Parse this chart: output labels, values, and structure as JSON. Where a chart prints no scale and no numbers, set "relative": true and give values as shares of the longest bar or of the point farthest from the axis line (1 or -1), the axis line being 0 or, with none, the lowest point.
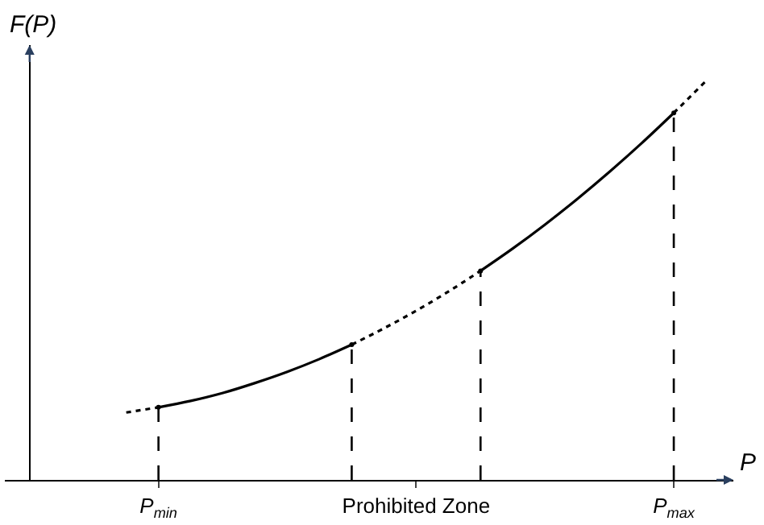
{
  "chart_data": {
    "type": "line",
    "relative": true,
    "xlabel": "P",
    "ylabel": "F(P)",
    "categories": [
      null,
      null,
      null,
      null,
      "P$_{min}$",
      null,
      null,
      null,
      null,
      null,
      null,
      null,
      "Prohibited Zone",
      null,
      null,
      null,
      null,
      null,
      null,
      null,
      "P$_{max}$",
      null
    ],
    "marker": "none",
    "series": [
      {
        "color": "#000000",
        "line_style": "dotted",
        "values": [
          null,
          null,
          null,
          0.169,
          0.182,
          null,
          null,
          null,
          null,
          null,
          null,
          null,
          null,
          null,
          null,
          null,
          null,
          null,
          null,
          null,
          null,
          null
        ]
      },
      {
        "color": "#000000",
        "line_style": "solid",
        "values": [
          null,
          null,
          null,
          null,
          0.182,
          0.198,
          0.218,
          0.243,
          0.271,
          0.303,
          0.339,
          null,
          null,
          null,
          null,
          null,
          null,
          null,
          null,
          null,
          null,
          null
        ]
      },
      {
        "color": "#000000",
        "line_style": "dotted",
        "values": [
          null,
          null,
          null,
          null,
          null,
          null,
          null,
          null,
          null,
          null,
          0.339,
          0.38,
          0.424,
          0.472,
          0.524,
          null,
          null,
          null,
          null,
          null,
          null,
          null
        ]
      },
      {
        "color": "#000000",
        "line_style": "solid",
        "values": [
          null,
          null,
          null,
          null,
          null,
          null,
          null,
          null,
          null,
          null,
          null,
          null,
          null,
          null,
          0.524,
          0.58,
          0.64,
          0.704,
          0.772,
          0.844,
          0.92,
          null
        ]
      },
      {
        "color": "#000000",
        "line_style": "dotted",
        "values": [
          null,
          null,
          null,
          null,
          null,
          null,
          null,
          null,
          null,
          null,
          null,
          null,
          null,
          null,
          null,
          null,
          null,
          null,
          null,
          null,
          0.92,
          1.0
        ]
      },
      {
        "type": "lollipop",
        "marker": "circle",
        "color": "#000000",
        "line_style": "dashed",
        "values": [
          null,
          null,
          null,
          null,
          0.182,
          null,
          null,
          null,
          null,
          null,
          0.339,
          null,
          null,
          null,
          0.524,
          null,
          null,
          null,
          null,
          null,
          0.92,
          null
        ]
      }
    ]
  }
}
